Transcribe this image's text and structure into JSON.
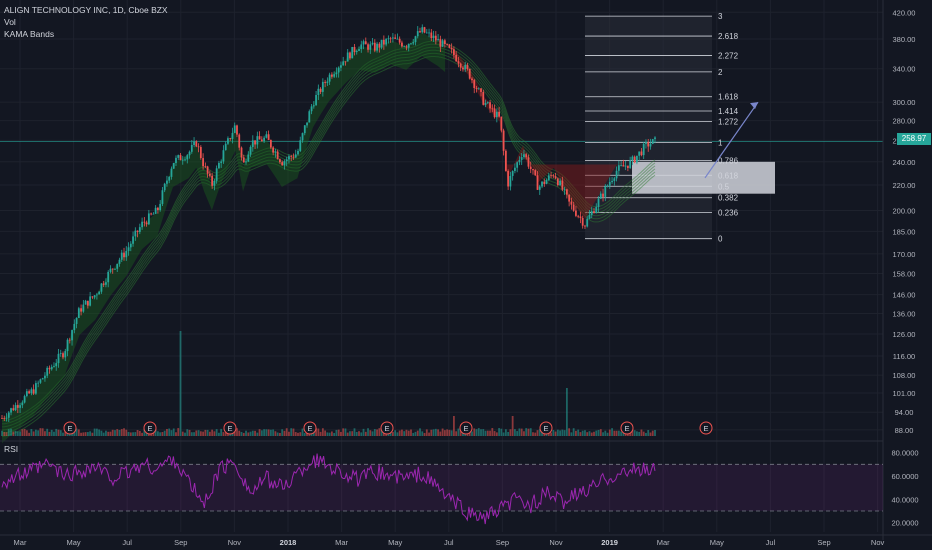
{
  "legend": {
    "title": "ALIGN TECHNOLOGY INC, 1D, Cboe BZX",
    "vol": "Vol",
    "kama": "KAMA Bands"
  },
  "rsi_label": "RSI",
  "last_price": "258.97",
  "colors": {
    "up": "#26a69a",
    "down": "#ef5350",
    "rsi": "#9c27b0",
    "band_green": "#1b5e20",
    "band_red": "#8b1a1a",
    "arrow": "#7986cb",
    "fib_zone": "#d1d4dc"
  },
  "chart_data": [
    {
      "type": "candlestick",
      "title": "ALIGN TECHNOLOGY INC, 1D, Cboe BZX",
      "scale": "log",
      "ylim": [
        86,
        430
      ],
      "y_ticks": [
        420.0,
        380.0,
        340.0,
        300.0,
        280.0,
        260.0,
        240.0,
        220.0,
        200.0,
        185.0,
        170.0,
        158.0,
        146.0,
        136.0,
        126.0,
        116.0,
        108.0,
        101.0,
        94.0,
        88.0
      ],
      "x_ticks": [
        "Mar",
        "May",
        "Jul",
        "Sep",
        "Nov",
        "2018",
        "Mar",
        "May",
        "Jul",
        "Sep",
        "Nov",
        "2019",
        "Mar",
        "May",
        "Jul",
        "Sep",
        "Nov"
      ],
      "last_price": 258.97,
      "price_path": [
        [
          0,
          92
        ],
        [
          4,
          102
        ],
        [
          8,
          118
        ],
        [
          10,
          138
        ],
        [
          12,
          146
        ],
        [
          14,
          160
        ],
        [
          16,
          172
        ],
        [
          18,
          190
        ],
        [
          20,
          200
        ],
        [
          22,
          240
        ],
        [
          24,
          248
        ],
        [
          25,
          258
        ],
        [
          26,
          236
        ],
        [
          27,
          220
        ],
        [
          28,
          240
        ],
        [
          30,
          275
        ],
        [
          31,
          236
        ],
        [
          32,
          258
        ],
        [
          34,
          262
        ],
        [
          36,
          240
        ],
        [
          38,
          248
        ],
        [
          40,
          300
        ],
        [
          42,
          330
        ],
        [
          44,
          352
        ],
        [
          46,
          372
        ],
        [
          48,
          368
        ],
        [
          50,
          380
        ],
        [
          52,
          372
        ],
        [
          54,
          392
        ],
        [
          56,
          378
        ],
        [
          58,
          360
        ],
        [
          60,
          335
        ],
        [
          62,
          300
        ],
        [
          64,
          282
        ],
        [
          65,
          220
        ],
        [
          67,
          250
        ],
        [
          69,
          218
        ],
        [
          71,
          230
        ],
        [
          73,
          205
        ],
        [
          75,
          190
        ],
        [
          77,
          210
        ],
        [
          79,
          232
        ],
        [
          81,
          240
        ],
        [
          83,
          256
        ],
        [
          84,
          259
        ]
      ],
      "fibonacci": [
        {
          "level": "3"
        },
        {
          "level": "2.618"
        },
        {
          "level": "2.272"
        },
        {
          "level": "2"
        },
        {
          "level": "1.618"
        },
        {
          "level": "1.414"
        },
        {
          "level": "1.272"
        },
        {
          "level": "1"
        },
        {
          "level": "0.786"
        },
        {
          "level": "0.618"
        },
        {
          "level": "0.5"
        },
        {
          "level": "0.382"
        },
        {
          "level": "0.236"
        },
        {
          "level": "0"
        }
      ],
      "earnings_markers": [
        "E",
        "E",
        "E",
        "E",
        "E",
        "E",
        "E",
        "E",
        "E",
        "E"
      ],
      "projection": {
        "from": 226,
        "to": 300
      }
    },
    {
      "type": "line",
      "title": "RSI",
      "ylim": [
        12,
        90
      ],
      "y_ticks": [
        80.0,
        60.0,
        40.0,
        20.0
      ],
      "bands": [
        70,
        30
      ],
      "path": [
        [
          0,
          55
        ],
        [
          3,
          62
        ],
        [
          6,
          70
        ],
        [
          8,
          60
        ],
        [
          10,
          64
        ],
        [
          12,
          68
        ],
        [
          14,
          58
        ],
        [
          16,
          62
        ],
        [
          18,
          70
        ],
        [
          20,
          66
        ],
        [
          22,
          76
        ],
        [
          24,
          55
        ],
        [
          26,
          35
        ],
        [
          28,
          66
        ],
        [
          30,
          72
        ],
        [
          32,
          45
        ],
        [
          34,
          58
        ],
        [
          36,
          50
        ],
        [
          38,
          62
        ],
        [
          40,
          74
        ],
        [
          42,
          70
        ],
        [
          44,
          62
        ],
        [
          46,
          56
        ],
        [
          48,
          64
        ],
        [
          50,
          60
        ],
        [
          52,
          58
        ],
        [
          54,
          62
        ],
        [
          56,
          50
        ],
        [
          58,
          38
        ],
        [
          60,
          28
        ],
        [
          62,
          24
        ],
        [
          64,
          30
        ],
        [
          66,
          40
        ],
        [
          68,
          35
        ],
        [
          70,
          45
        ],
        [
          72,
          38
        ],
        [
          74,
          44
        ],
        [
          76,
          50
        ],
        [
          78,
          60
        ],
        [
          80,
          62
        ],
        [
          82,
          66
        ],
        [
          84,
          65
        ]
      ]
    }
  ]
}
